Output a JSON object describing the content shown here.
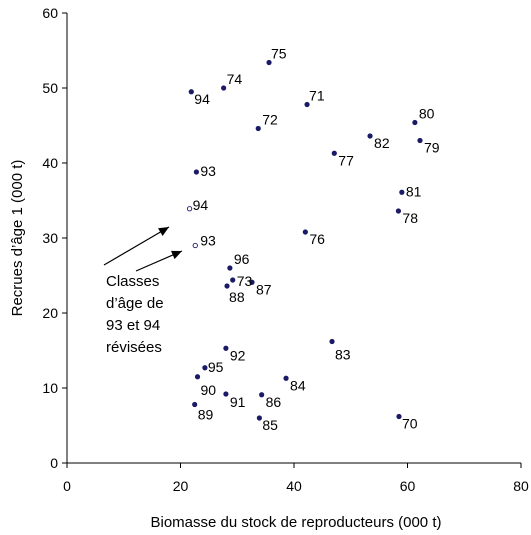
{
  "chart_data": {
    "type": "scatter",
    "title": "",
    "xlabel": "Biomasse du stock de reproducteurs (000 t)",
    "ylabel": "Recrues d’âge 1 (000 t)",
    "xlim": [
      0,
      80
    ],
    "ylim": [
      0,
      60
    ],
    "xticks": [
      0,
      20,
      40,
      60,
      80
    ],
    "yticks": [
      0,
      10,
      20,
      30,
      40,
      50,
      60
    ],
    "grid": false,
    "series": [
      {
        "marker": "filled",
        "color": "#1a1a66",
        "points": [
          {
            "x": 58.5,
            "y": 6.2,
            "label": "70"
          },
          {
            "x": 42.3,
            "y": 47.8,
            "label": "71"
          },
          {
            "x": 33.7,
            "y": 44.6,
            "label": "72"
          },
          {
            "x": 29.2,
            "y": 24.4,
            "label": "73"
          },
          {
            "x": 27.6,
            "y": 50.0,
            "label": "74"
          },
          {
            "x": 35.6,
            "y": 53.4,
            "label": "75"
          },
          {
            "x": 42.0,
            "y": 30.8,
            "label": "76"
          },
          {
            "x": 47.1,
            "y": 41.3,
            "label": "77"
          },
          {
            "x": 58.4,
            "y": 33.6,
            "label": "78"
          },
          {
            "x": 62.2,
            "y": 43.0,
            "label": "79"
          },
          {
            "x": 61.3,
            "y": 45.4,
            "label": "80"
          },
          {
            "x": 59.0,
            "y": 36.1,
            "label": "81"
          },
          {
            "x": 53.4,
            "y": 43.6,
            "label": "82"
          },
          {
            "x": 46.7,
            "y": 16.2,
            "label": "83"
          },
          {
            "x": 38.6,
            "y": 11.3,
            "label": "84"
          },
          {
            "x": 33.9,
            "y": 6.0,
            "label": "85"
          },
          {
            "x": 34.3,
            "y": 9.1,
            "label": "86"
          },
          {
            "x": 32.6,
            "y": 24.1,
            "label": "87"
          },
          {
            "x": 28.2,
            "y": 23.6,
            "label": "88"
          },
          {
            "x": 22.5,
            "y": 7.8,
            "label": "89"
          },
          {
            "x": 23.0,
            "y": 11.5,
            "label": "90"
          },
          {
            "x": 28.0,
            "y": 9.2,
            "label": "91"
          },
          {
            "x": 28.0,
            "y": 15.3,
            "label": "92"
          },
          {
            "x": 22.8,
            "y": 38.8,
            "label": "93"
          },
          {
            "x": 21.9,
            "y": 49.5,
            "label": "94"
          },
          {
            "x": 24.3,
            "y": 12.7,
            "label": "95"
          },
          {
            "x": 28.7,
            "y": 26.0,
            "label": "96"
          }
        ]
      },
      {
        "marker": "open",
        "color": "#1a1a66",
        "points": [
          {
            "x": 22.6,
            "y": 29.0,
            "label": "93"
          },
          {
            "x": 21.6,
            "y": 33.9,
            "label": "94"
          }
        ]
      }
    ],
    "annotation": {
      "lines": [
        "Classes",
        "d’âge de",
        "93 et 94",
        "révisées"
      ]
    }
  }
}
